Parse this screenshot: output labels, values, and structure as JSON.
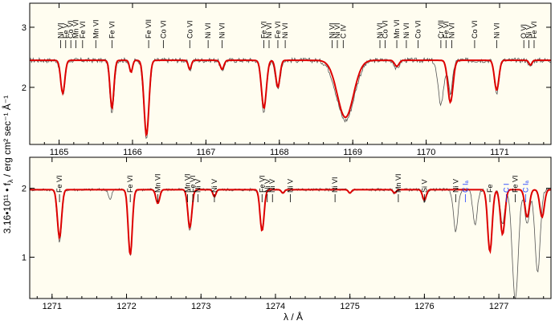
{
  "figure": {
    "ylabel": "3.16•10¹¹ • f",
    "ylabel_sub": "λ",
    "ylabel_units": " / erg cm² sec⁻¹ Å⁻¹",
    "xlabel": "λ / Å"
  },
  "colors": {
    "background": "#fffdf0",
    "model": "#dd0000",
    "observed": "#555555",
    "id_ism": "#2040ff",
    "id_photo": "#000000"
  },
  "chart_data": [
    {
      "type": "line",
      "xlim": [
        1164.6,
        1171.7
      ],
      "ylim": [
        1.05,
        3.4
      ],
      "xticks": [
        1165,
        1166,
        1167,
        1168,
        1169,
        1170,
        1171
      ],
      "yticks": [
        2,
        3
      ],
      "continuum": 2.45,
      "series": [
        {
          "role": "observed",
          "line_color": "#555555",
          "noise": 0.04,
          "lines": [
            [
              1165.05,
              0.58,
              0.03
            ],
            [
              1165.72,
              0.9,
              0.028
            ],
            [
              1165.98,
              0.22,
              0.02
            ],
            [
              1166.19,
              1.3,
              0.035
            ],
            [
              1166.78,
              0.18,
              0.02
            ],
            [
              1167.22,
              0.18,
              0.025
            ],
            [
              1167.79,
              0.85,
              0.035
            ],
            [
              1167.98,
              0.5,
              0.03
            ],
            [
              1168.9,
              1.0,
              0.12
            ],
            [
              1169.6,
              0.15,
              0.03
            ],
            [
              1170.2,
              0.72,
              0.04
            ],
            [
              1170.33,
              0.55,
              0.03
            ],
            [
              1170.96,
              0.55,
              0.03
            ],
            [
              1171.42,
              0.12,
              0.02
            ]
          ]
        },
        {
          "role": "model",
          "line_color": "#dd0000",
          "noise": 0,
          "lines": [
            [
              1165.05,
              0.55,
              0.028
            ],
            [
              1165.72,
              0.8,
              0.026
            ],
            [
              1165.98,
              0.2,
              0.02
            ],
            [
              1166.19,
              1.25,
              0.033
            ],
            [
              1166.78,
              0.15,
              0.02
            ],
            [
              1167.22,
              0.15,
              0.025
            ],
            [
              1167.79,
              0.8,
              0.033
            ],
            [
              1167.98,
              0.45,
              0.028
            ],
            [
              1168.9,
              0.95,
              0.11
            ],
            [
              1169.6,
              0.1,
              0.03
            ],
            [
              1170.33,
              0.7,
              0.035
            ],
            [
              1170.96,
              0.5,
              0.03
            ],
            [
              1171.42,
              0.08,
              0.02
            ]
          ]
        }
      ],
      "line_ids": [
        {
          "x": 1165.02,
          "label": "Ni VI",
          "color": "#000000"
        },
        {
          "x": 1165.09,
          "label": "Fe V",
          "color": "#000000"
        },
        {
          "x": 1165.16,
          "label": "Co VI",
          "color": "#000000"
        },
        {
          "x": 1165.23,
          "label": "Mn VI",
          "color": "#000000"
        },
        {
          "x": 1165.32,
          "label": "Fe VI",
          "color": "#000000"
        },
        {
          "x": 1165.5,
          "label": "Mn VI",
          "color": "#000000"
        },
        {
          "x": 1165.72,
          "label": "Fe VI",
          "color": "#000000"
        },
        {
          "x": 1166.22,
          "label": "Fe VII",
          "color": "#000000"
        },
        {
          "x": 1166.42,
          "label": "Co VI",
          "color": "#000000"
        },
        {
          "x": 1166.78,
          "label": "Co VI",
          "color": "#000000"
        },
        {
          "x": 1167.03,
          "label": "Ni VI",
          "color": "#000000"
        },
        {
          "x": 1167.22,
          "label": "Ni VI",
          "color": "#000000"
        },
        {
          "x": 1167.79,
          "label": "Fe VI",
          "color": "#000000"
        },
        {
          "x": 1167.86,
          "label": "Ni VI",
          "color": "#000000"
        },
        {
          "x": 1167.98,
          "label": "Fe VI",
          "color": "#000000"
        },
        {
          "x": 1168.08,
          "label": "Ni VI",
          "color": "#000000"
        },
        {
          "x": 1168.72,
          "label": "Ni VI",
          "color": "#000000"
        },
        {
          "x": 1168.79,
          "label": "Ni VI",
          "color": "#000000"
        },
        {
          "x": 1168.87,
          "label": "C IV",
          "color": "#000000"
        },
        {
          "x": 1169.37,
          "label": "Ni VI",
          "color": "#000000"
        },
        {
          "x": 1169.44,
          "label": "Co VI",
          "color": "#000000"
        },
        {
          "x": 1169.6,
          "label": "Mn VI",
          "color": "#000000"
        },
        {
          "x": 1169.73,
          "label": "Ni VI",
          "color": "#000000"
        },
        {
          "x": 1169.89,
          "label": "Co VI",
          "color": "#000000"
        },
        {
          "x": 1170.2,
          "label": "Cr VII",
          "color": "#000000"
        },
        {
          "x": 1170.27,
          "label": "Fe VI",
          "color": "#000000"
        },
        {
          "x": 1170.35,
          "label": "Ni VI",
          "color": "#000000"
        },
        {
          "x": 1170.66,
          "label": "Co VI",
          "color": "#000000"
        },
        {
          "x": 1170.96,
          "label": "Ni VI",
          "color": "#000000"
        },
        {
          "x": 1171.33,
          "label": "O VI",
          "color": "#000000"
        },
        {
          "x": 1171.4,
          "label": "Ni V",
          "color": "#000000"
        },
        {
          "x": 1171.47,
          "label": "Fe VI",
          "color": "#000000"
        }
      ]
    },
    {
      "type": "line",
      "xlim": [
        1270.7,
        1277.7
      ],
      "ylim": [
        0.4,
        2.45
      ],
      "xticks": [
        1271,
        1272,
        1273,
        1274,
        1275,
        1276,
        1277
      ],
      "yticks": [
        1,
        2
      ],
      "continuum": 1.98,
      "series": [
        {
          "role": "observed",
          "line_color": "#555555",
          "noise": 0.02,
          "lines": [
            [
              1271.1,
              0.75,
              0.03
            ],
            [
              1272.05,
              0.95,
              0.028
            ],
            [
              1272.42,
              0.2,
              0.025
            ],
            [
              1272.85,
              0.6,
              0.028
            ],
            [
              1273.18,
              0.1,
              0.02
            ],
            [
              1273.82,
              0.6,
              0.028
            ],
            [
              1274.1,
              0.05,
              0.02
            ],
            [
              1275.0,
              0.05,
              0.02
            ],
            [
              1275.6,
              0.05,
              0.02
            ],
            [
              1276.0,
              0.2,
              0.025
            ],
            [
              1276.42,
              0.6,
              0.03
            ],
            [
              1276.68,
              0.5,
              0.03
            ],
            [
              1276.88,
              0.9,
              0.03
            ],
            [
              1277.05,
              0.5,
              0.03
            ],
            [
              1277.22,
              1.6,
              0.04
            ],
            [
              1277.38,
              0.5,
              0.03
            ],
            [
              1277.52,
              1.2,
              0.035
            ],
            [
              1271.78,
              0.15,
              0.02
            ]
          ]
        },
        {
          "role": "model",
          "line_color": "#dd0000",
          "noise": 0,
          "lines": [
            [
              1271.1,
              0.7,
              0.028
            ],
            [
              1272.05,
              0.95,
              0.027
            ],
            [
              1272.42,
              0.2,
              0.025
            ],
            [
              1272.85,
              0.55,
              0.027
            ],
            [
              1273.18,
              0.1,
              0.02
            ],
            [
              1273.82,
              0.6,
              0.027
            ],
            [
              1274.1,
              0.05,
              0.02
            ],
            [
              1275.0,
              0.05,
              0.02
            ],
            [
              1275.6,
              0.05,
              0.02
            ],
            [
              1276.0,
              0.15,
              0.025
            ],
            [
              1276.88,
              0.9,
              0.03
            ],
            [
              1277.05,
              0.65,
              0.03
            ],
            [
              1277.38,
              0.4,
              0.03
            ],
            [
              1277.58,
              0.4,
              0.03
            ]
          ]
        }
      ],
      "line_ids": [
        {
          "x": 1271.1,
          "label": "Fe VI",
          "color": "#000000"
        },
        {
          "x": 1272.05,
          "label": "Fe VI",
          "color": "#000000"
        },
        {
          "x": 1272.42,
          "label": "Mn VI",
          "color": "#000000"
        },
        {
          "x": 1272.82,
          "label": "Mn VI",
          "color": "#000000"
        },
        {
          "x": 1272.89,
          "label": "Fe VI",
          "color": "#000000"
        },
        {
          "x": 1272.96,
          "label": "Ni V",
          "color": "#000000"
        },
        {
          "x": 1273.18,
          "label": "Ni V",
          "color": "#000000"
        },
        {
          "x": 1273.82,
          "label": "Fe VI",
          "color": "#000000"
        },
        {
          "x": 1273.89,
          "label": "Ni V",
          "color": "#000000"
        },
        {
          "x": 1273.96,
          "label": "Ni V",
          "color": "#000000"
        },
        {
          "x": 1274.2,
          "label": "Ni V",
          "color": "#000000"
        },
        {
          "x": 1274.8,
          "label": "Ni VI",
          "color": "#000000"
        },
        {
          "x": 1275.65,
          "label": "Mn VI",
          "color": "#000000"
        },
        {
          "x": 1276.0,
          "label": "Si V",
          "color": "#000000"
        },
        {
          "x": 1276.42,
          "label": "Ni V",
          "color": "#000000"
        },
        {
          "x": 1276.55,
          "label": "C Iₐ",
          "color": "#2040ff"
        },
        {
          "x": 1276.88,
          "label": "Fe",
          "color": "#000000"
        },
        {
          "x": 1277.1,
          "label": "C I",
          "color": "#2040ff"
        },
        {
          "x": 1277.22,
          "label": "Fe VI",
          "color": "#000000"
        },
        {
          "x": 1277.36,
          "label": "C Iₐ",
          "color": "#2040ff"
        }
      ]
    }
  ]
}
